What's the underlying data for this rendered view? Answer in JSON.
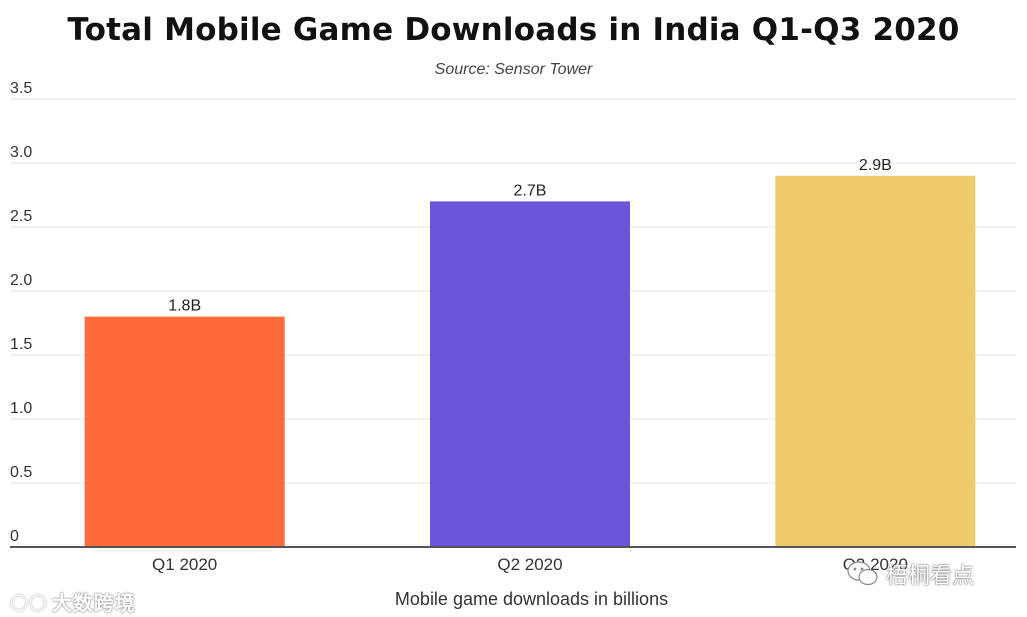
{
  "chart_data": {
    "type": "bar",
    "title": "Total Mobile Game Downloads in India Q1-Q3 2020",
    "subtitle": "Source: Sensor Tower",
    "xlabel": "Mobile game downloads in billions",
    "ylabel": "",
    "categories": [
      "Q1 2020",
      "Q2 2020",
      "Q3 2020"
    ],
    "values": [
      1.8,
      2.7,
      2.9
    ],
    "data_labels": [
      "1.8B",
      "2.7B",
      "2.9B"
    ],
    "bar_colors": [
      "#ff6b3a",
      "#6c55db",
      "#f0cb6c"
    ],
    "ylim": [
      0,
      3.5
    ],
    "y_ticks": [
      0,
      0.5,
      1.0,
      1.5,
      2.0,
      2.5,
      3.0,
      3.5
    ],
    "y_tick_labels": [
      "0",
      "0.5",
      "1.0",
      "1.5",
      "2.0",
      "2.5",
      "3.0",
      "3.5"
    ],
    "grid": true
  },
  "watermarks": {
    "left_text": "大数跨境",
    "right_text": "梧桐看点"
  },
  "colors": {
    "grid": "#e3e3e3",
    "baseline": "#555555",
    "tick_text": "#333333"
  }
}
